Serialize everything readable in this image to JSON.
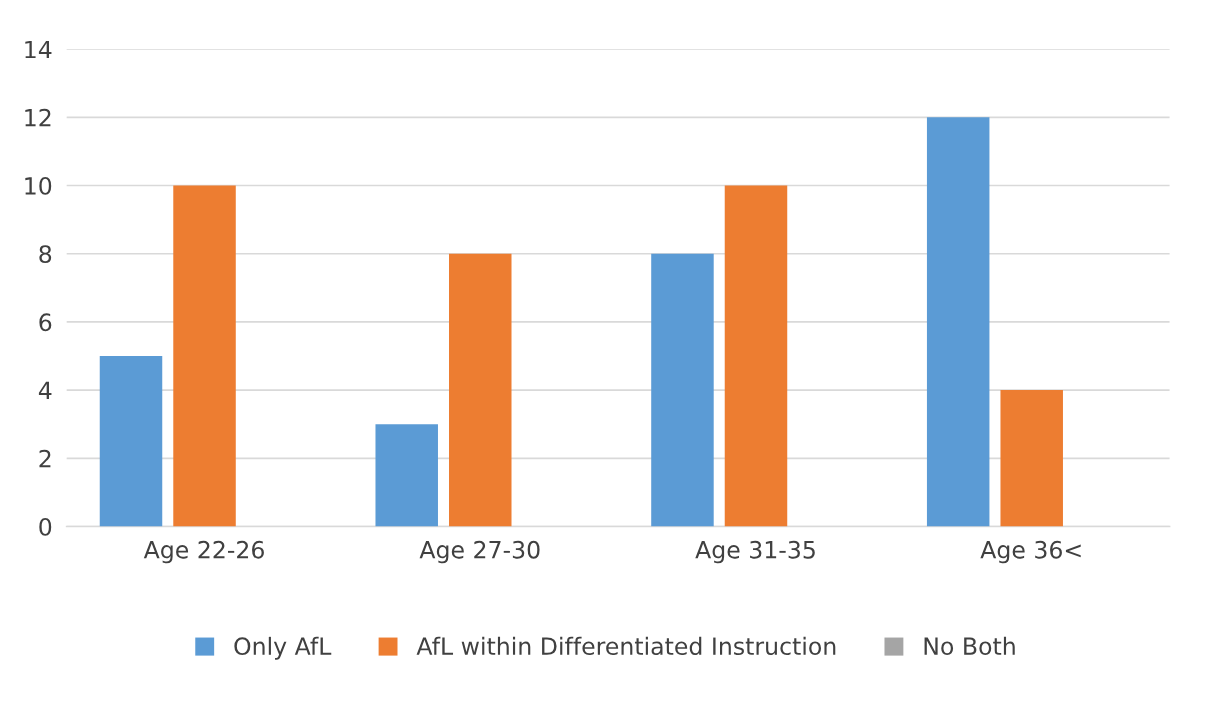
{
  "chart_data": {
    "type": "bar",
    "categories": [
      "Age 22-26",
      "Age 27-30",
      "Age 31-35",
      "Age 36<"
    ],
    "series": [
      {
        "name": "Only AfL",
        "color": "#5b9bd5",
        "values": [
          5,
          3,
          8,
          12
        ]
      },
      {
        "name": "AfL within Differentiated Instruction",
        "color": "#ed7d31",
        "values": [
          10,
          8,
          10,
          4
        ]
      },
      {
        "name": "No Both",
        "color": "#a5a5a5",
        "values": [
          0,
          0,
          0,
          0
        ]
      }
    ],
    "ylim": [
      0,
      14
    ],
    "yticks": [
      0,
      2,
      4,
      6,
      8,
      10,
      12,
      14
    ],
    "grid": "y",
    "legend": "bottom"
  }
}
